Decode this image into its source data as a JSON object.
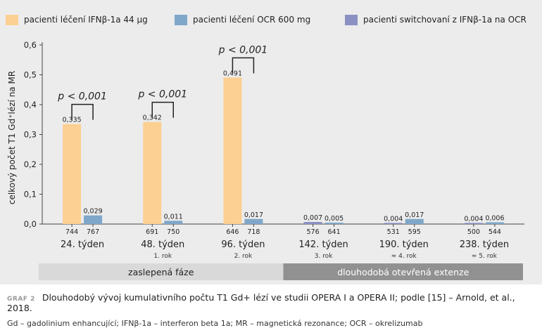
{
  "legend": [
    {
      "label": "pacienti léčení IFNβ-1a 44 µg",
      "color": "#fcd092"
    },
    {
      "label": "pacienti léčení OCR 600 mg",
      "color": "#7fa7c9"
    },
    {
      "label": "pacienti switchovaní z IFNβ-1a na OCR",
      "color": "#8b90c3"
    }
  ],
  "caption": {
    "label": "GRAF 2",
    "title": "Dlouhodobý vývoj kumulativního počtu T1 Gd+ lézí ve studii OPERA I a OPERA II; podle [15] – Arnold, et al., 2018.",
    "note": "Gd – gadolinium enhancující; IFNβ-1a – interferon beta 1a; MR – magnetická rezonance; OCR – okrelizumab"
  },
  "chart_data": {
    "type": "bar",
    "ylabel": "celkový počet T1 Gd⁺lézí na MR",
    "ylim": [
      0,
      0.6
    ],
    "yticks": [
      "0,0",
      "0,1",
      "0,2",
      "0,3",
      "0,4",
      "0,5",
      "0,6"
    ],
    "groups": [
      {
        "label": "24. týden",
        "sublabel": "",
        "bars": [
          {
            "series": 0,
            "value": 0.335,
            "label": "0,335",
            "n": "744"
          },
          {
            "series": 1,
            "value": 0.029,
            "label": "0,029",
            "n": "767"
          }
        ]
      },
      {
        "label": "48. týden",
        "sublabel": "1. rok",
        "bars": [
          {
            "series": 0,
            "value": 0.342,
            "label": "0,342",
            "n": "691"
          },
          {
            "series": 1,
            "value": 0.011,
            "label": "0,011",
            "n": "750"
          }
        ]
      },
      {
        "label": "96. týden",
        "sublabel": "2. rok",
        "bars": [
          {
            "series": 0,
            "value": 0.491,
            "label": "0,491",
            "n": "646"
          },
          {
            "series": 1,
            "value": 0.017,
            "label": "0,017",
            "n": "718"
          }
        ]
      },
      {
        "label": "142. týden",
        "sublabel": "3. rok",
        "bars": [
          {
            "series": 2,
            "value": 0.007,
            "label": "0,007",
            "n": "576"
          },
          {
            "series": 1,
            "value": 0.005,
            "label": "0,005",
            "n": "641"
          }
        ]
      },
      {
        "label": "190. týden",
        "sublabel": "≈ 4. rok",
        "bars": [
          {
            "series": 2,
            "value": 0.004,
            "label": "0,004",
            "n": "531"
          },
          {
            "series": 1,
            "value": 0.017,
            "label": "0,017",
            "n": "595"
          }
        ]
      },
      {
        "label": "238. týden",
        "sublabel": "≈ 5. rok",
        "bars": [
          {
            "series": 2,
            "value": 0.004,
            "label": "0,004",
            "n": "500"
          },
          {
            "series": 1,
            "value": 0.006,
            "label": "0,006",
            "n": "544"
          }
        ]
      }
    ],
    "annotations": [
      {
        "group": 0,
        "text": "p < 0,001"
      },
      {
        "group": 1,
        "text": "p < 0,001"
      },
      {
        "group": 2,
        "text": "p < 0,001"
      }
    ],
    "phases": [
      {
        "label": "zaslepená fáze",
        "from_group": 0,
        "to_group": 2,
        "color": "#d9d9d9",
        "text_color": "#222222"
      },
      {
        "label": "dlouhodobá otevřená extenze",
        "from_group": 3,
        "to_group": 5,
        "color": "#919191",
        "text_color": "#ffffff"
      }
    ]
  }
}
